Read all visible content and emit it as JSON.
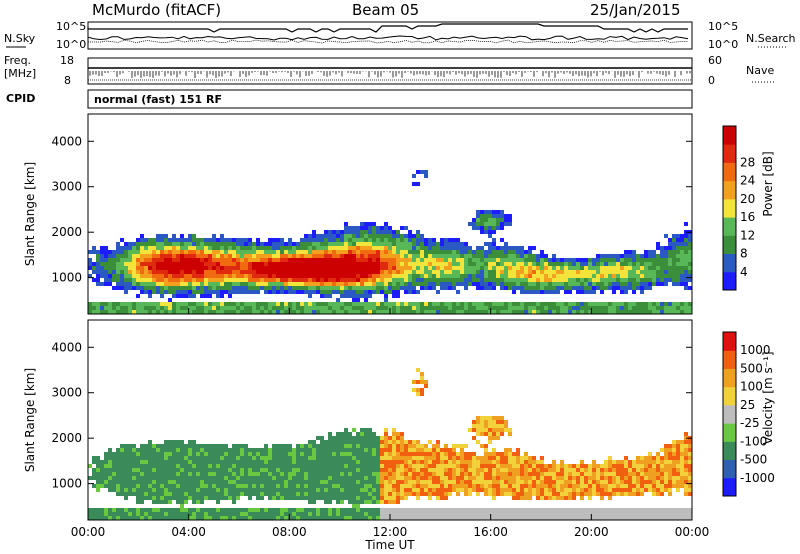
{
  "header": {
    "title": "McMurdo (fitACF)",
    "beam": "Beam 05",
    "date": "25/Jan/2015"
  },
  "strip_labels": {
    "nsky": "N.Sky",
    "nsky_top": "10^5",
    "nsky_bottom": "10^0",
    "nsearch": "N.Search",
    "nsearch_top": "10^5",
    "nsearch_bottom": "10^0",
    "freq": "Freq.",
    "freq_unit": "[MHz]",
    "freq_top": "18",
    "freq_bottom": "8",
    "nave": "Nave",
    "nave_top": "60",
    "nave_bottom": "0",
    "cpid": "CPID",
    "cpid_text": "normal (fast) 151 RF"
  },
  "colors": {
    "power_scale": [
      "#1c1cff",
      "#2b59c3",
      "#3b8f3b",
      "#58b858",
      "#f2e43a",
      "#f3a01f",
      "#f06a10",
      "#e02a10",
      "#cc0000"
    ],
    "velocity_scale": [
      "#1c1cff",
      "#2f5fb3",
      "#3a8a5a",
      "#6ac840",
      "#bdbdbd",
      "#f2d23a",
      "#f0a020",
      "#f06010",
      "#e01010"
    ]
  },
  "chart_data": [
    {
      "type": "heatmap",
      "name": "power",
      "ylabel": "Slant Range [km]",
      "y_ticks": [
        "1000",
        "2000",
        "3000",
        "4000"
      ],
      "ylim": [
        200,
        4600
      ],
      "xlim": [
        "00:00",
        "24:00"
      ],
      "colorbar": {
        "label": "Power [dB]",
        "ticks": [
          "4",
          "8",
          "12",
          "16",
          "20",
          "24",
          "28"
        ],
        "range": [
          0,
          32
        ]
      }
    },
    {
      "type": "heatmap",
      "name": "velocity",
      "ylabel": "Slant Range [km]",
      "y_ticks": [
        "1000",
        "2000",
        "3000",
        "4000"
      ],
      "ylim": [
        200,
        4600
      ],
      "xlim": [
        "00:00",
        "24:00"
      ],
      "x_ticks": [
        "00:00",
        "04:00",
        "08:00",
        "12:00",
        "16:00",
        "20:00",
        "00:00"
      ],
      "xlabel": "Time UT",
      "colorbar": {
        "label": "Velocity [m s⁻¹]",
        "ticks": [
          "1000",
          "500",
          "100",
          "25",
          "-25",
          "-100",
          "-500",
          "-1000"
        ]
      }
    }
  ]
}
